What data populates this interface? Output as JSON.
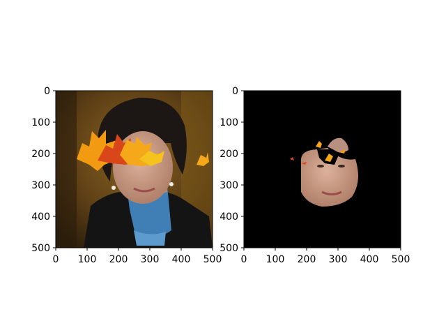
{
  "chart_data": [
    {
      "type": "image",
      "title": "",
      "xlabel": "",
      "ylabel": "",
      "xlim": [
        0,
        500
      ],
      "ylim": [
        500,
        0
      ],
      "x_ticks": [
        "0",
        "100",
        "200",
        "300",
        "400",
        "500"
      ],
      "y_ticks": [
        "0",
        "100",
        "200",
        "300",
        "400",
        "500"
      ],
      "content": "photo of a woman with dark curly hair, blue turtleneck and black jacket; autumn maple leaves overlaid across her forehead"
    },
    {
      "type": "image",
      "title": "",
      "xlabel": "",
      "ylabel": "",
      "xlim": [
        0,
        500
      ],
      "ylim": [
        500,
        0
      ],
      "x_ticks": [
        "0",
        "100",
        "200",
        "300",
        "400",
        "500"
      ],
      "y_ticks": [
        "0",
        "100",
        "200",
        "300",
        "400",
        "500"
      ],
      "content": "same photo masked to the face region on a black background"
    }
  ],
  "colors": {
    "background": "#ffffff",
    "mask": "#000000",
    "skin": "#c99a84",
    "hair": "#1c1614",
    "sweater": "#3f7fb5",
    "jacket": "#141414",
    "leaf_orange": "#f29a12",
    "leaf_red": "#d9461a",
    "leaf_yellow": "#f6c21e",
    "wood_bg": "#6b4a1c"
  }
}
